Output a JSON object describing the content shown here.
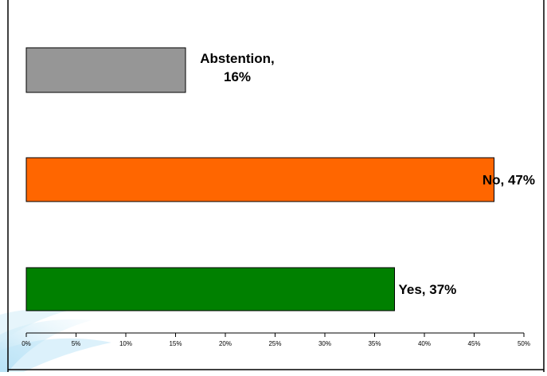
{
  "chart_data": {
    "type": "bar",
    "orientation": "horizontal",
    "categories": [
      "Abstention",
      "No",
      "Yes"
    ],
    "values": [
      16,
      47,
      37
    ],
    "data_labels": [
      [
        "Abstention,",
        "16%"
      ],
      [
        "No, 47%"
      ],
      [
        "Yes, 37%"
      ]
    ],
    "colors": [
      "#969696",
      "#ff6600",
      "#008000"
    ],
    "xlim": [
      0,
      50
    ],
    "x_ticks": [
      "0%",
      "5%",
      "10%",
      "15%",
      "20%",
      "25%",
      "30%",
      "35%",
      "40%",
      "45%",
      "50%"
    ],
    "title": "",
    "xlabel": "",
    "ylabel": "",
    "grid": false,
    "legend": "none"
  }
}
